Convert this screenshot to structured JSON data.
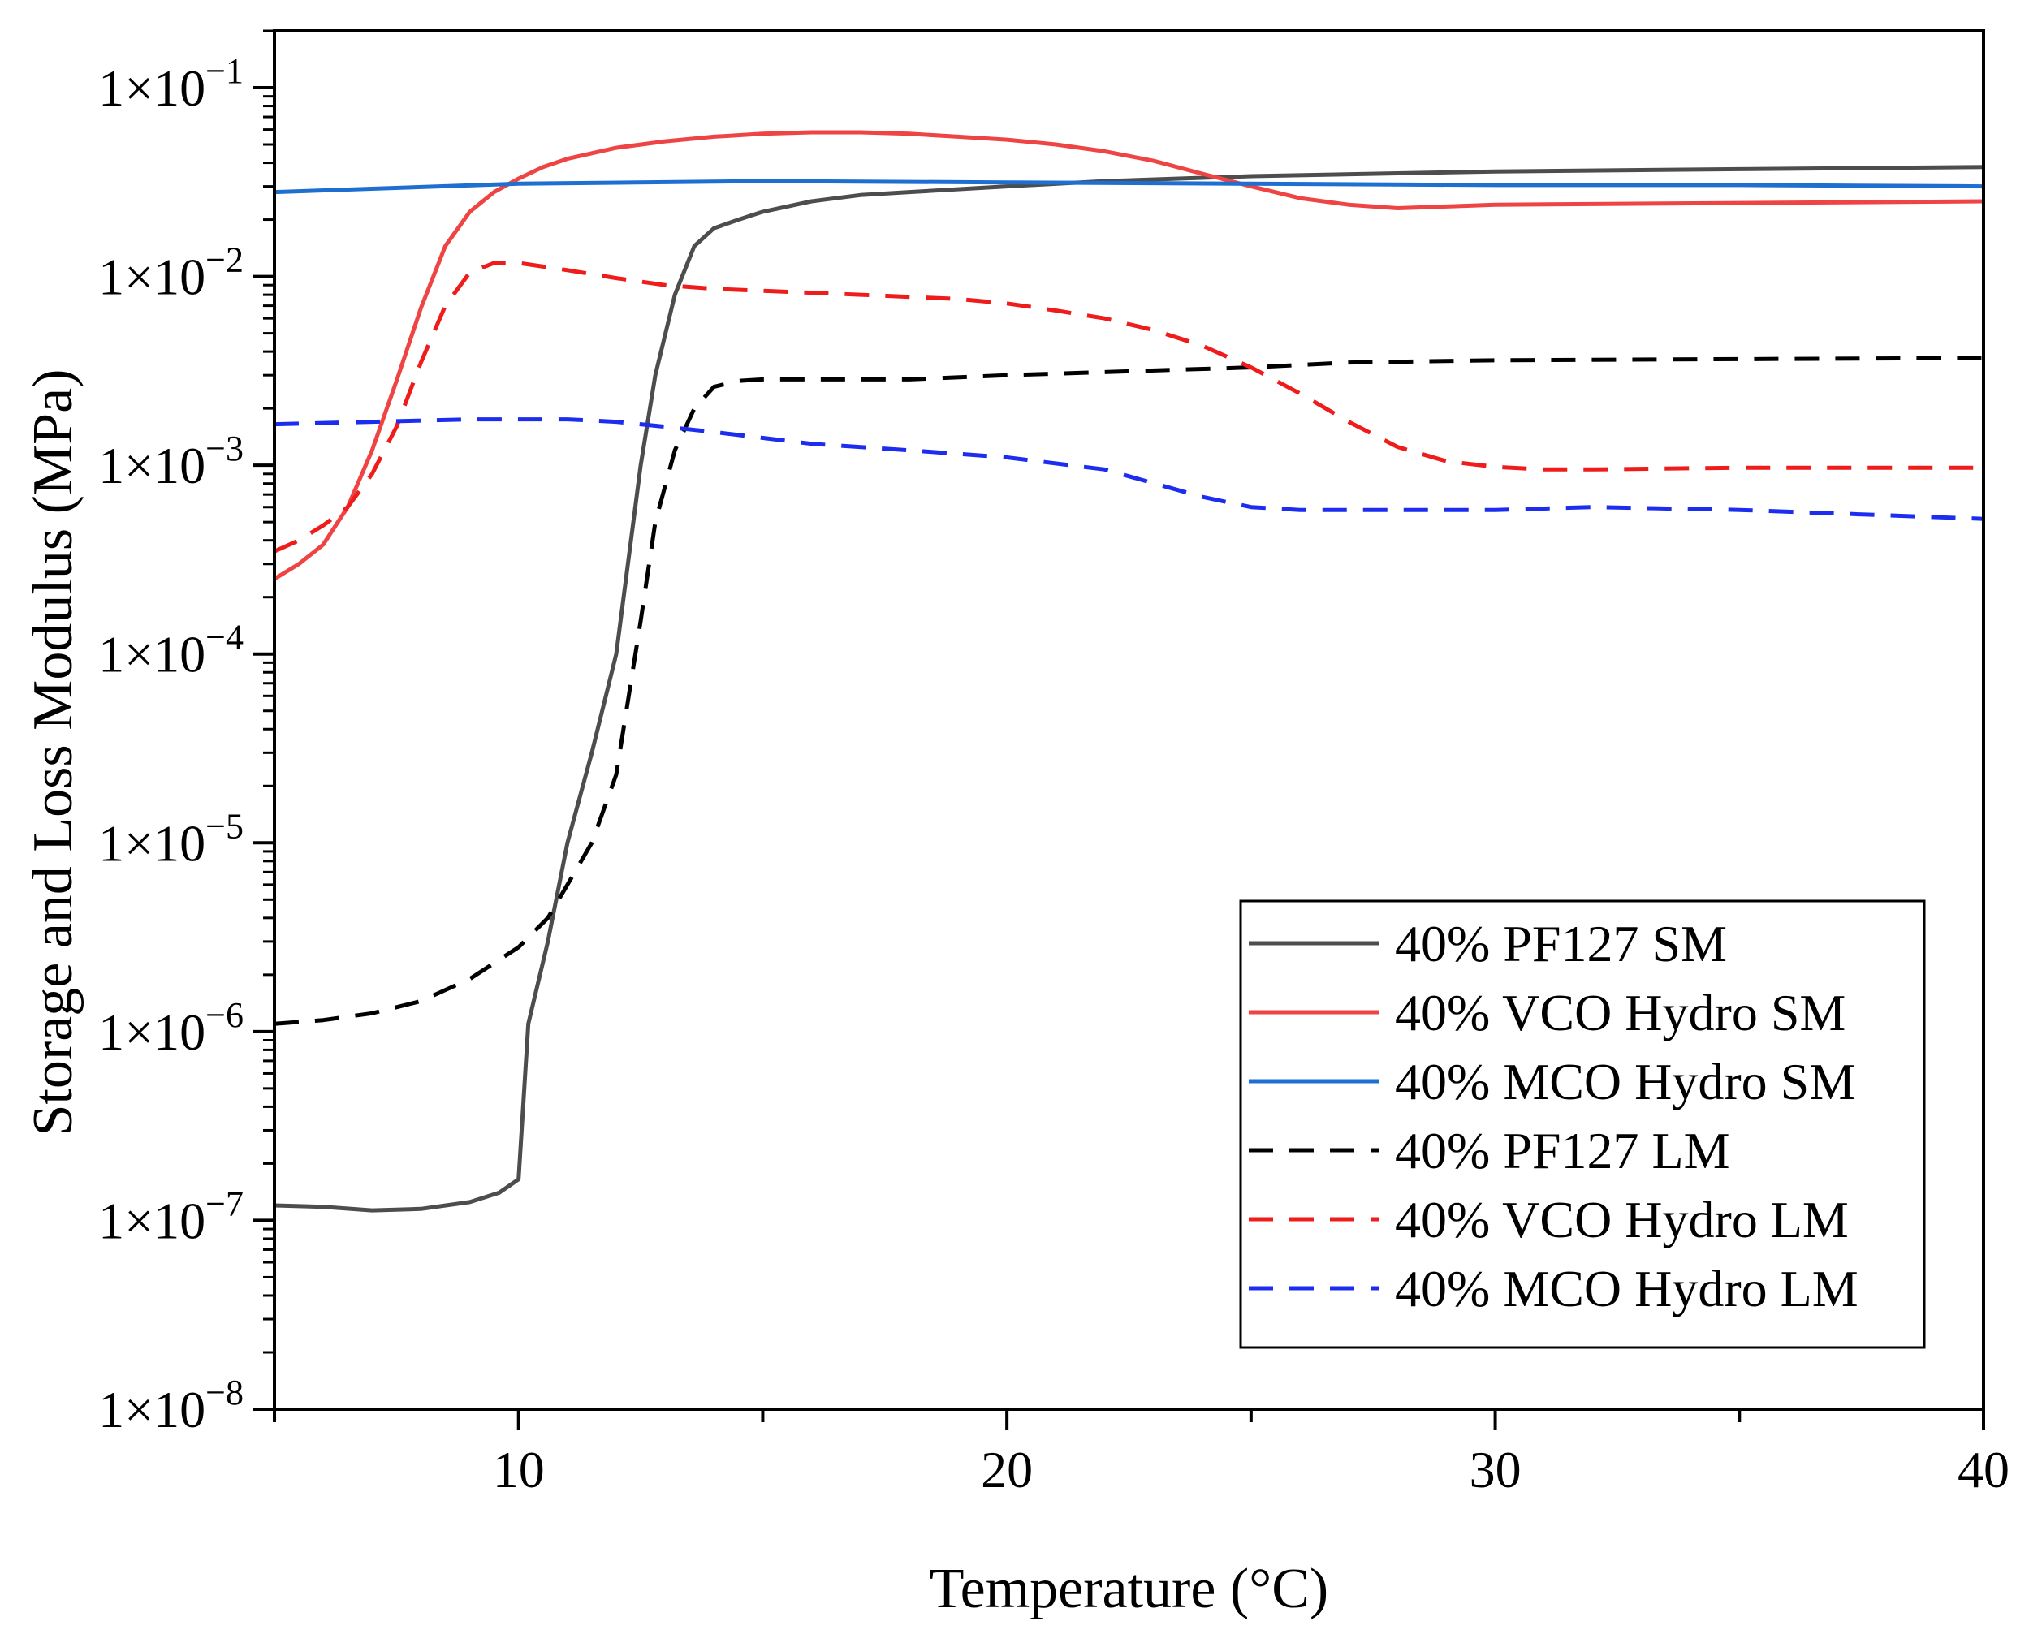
{
  "chart_data": {
    "type": "line",
    "title": "",
    "xlabel": "Temperature (°C)",
    "ylabel": "Storage and Loss Modulus (MPa)",
    "xlim": [
      5,
      40
    ],
    "ylim": [
      1e-08,
      0.2
    ],
    "yscale": "log",
    "grid": false,
    "legend_position": "bottom-right",
    "x_ticks": [
      {
        "value": 10,
        "label": "10"
      },
      {
        "value": 20,
        "label": "20"
      },
      {
        "value": 30,
        "label": "30"
      },
      {
        "value": 40,
        "label": "40"
      }
    ],
    "y_ticks": [
      {
        "value": 1e-08,
        "label": "1×10",
        "exp": "−8"
      },
      {
        "value": 1e-07,
        "label": "1×10",
        "exp": "−7"
      },
      {
        "value": 1e-06,
        "label": "1×10",
        "exp": "−6"
      },
      {
        "value": 1e-05,
        "label": "1×10",
        "exp": "−5"
      },
      {
        "value": 0.0001,
        "label": "1×10",
        "exp": "−4"
      },
      {
        "value": 0.001,
        "label": "1×10",
        "exp": "−3"
      },
      {
        "value": 0.01,
        "label": "1×10",
        "exp": "−2"
      },
      {
        "value": 0.1,
        "label": "1×10",
        "exp": "−1"
      }
    ],
    "series": [
      {
        "name": "40% PF127 SM",
        "color": "#4d4d4d",
        "dash": "solid",
        "x": [
          5,
          6,
          7,
          8,
          9,
          9.6,
          10,
          10.2,
          10.6,
          11,
          11.5,
          12,
          12.5,
          12.8,
          13.2,
          13.6,
          14,
          14.5,
          15,
          16,
          17,
          18,
          20,
          22,
          25,
          30,
          35,
          40
        ],
        "y": [
          1.2e-07,
          1.18e-07,
          1.13e-07,
          1.15e-07,
          1.25e-07,
          1.4e-07,
          1.65e-07,
          1.1e-06,
          3e-06,
          1e-05,
          3e-05,
          0.0001,
          0.001,
          0.003,
          0.008,
          0.0145,
          0.018,
          0.02,
          0.022,
          0.025,
          0.027,
          0.028,
          0.03,
          0.032,
          0.034,
          0.036,
          0.037,
          0.038
        ]
      },
      {
        "name": "40% VCO Hydro SM",
        "color": "#ef4444",
        "dash": "solid",
        "x": [
          5,
          5.5,
          6,
          6.5,
          7,
          7.5,
          8,
          8.5,
          9,
          9.5,
          10,
          10.5,
          11,
          12,
          13,
          14,
          15,
          16,
          17,
          18,
          19,
          20,
          21,
          22,
          23,
          24,
          25,
          26,
          27,
          28,
          30,
          35,
          40
        ],
        "y": [
          0.00025,
          0.0003,
          0.00038,
          0.0006,
          0.0012,
          0.0028,
          0.0068,
          0.0145,
          0.022,
          0.028,
          0.033,
          0.038,
          0.042,
          0.048,
          0.052,
          0.055,
          0.057,
          0.058,
          0.058,
          0.057,
          0.055,
          0.053,
          0.05,
          0.046,
          0.041,
          0.035,
          0.03,
          0.026,
          0.024,
          0.023,
          0.024,
          0.0245,
          0.025
        ]
      },
      {
        "name": "40% MCO Hydro SM",
        "color": "#1f6fd1",
        "dash": "solid",
        "x": [
          5,
          10,
          15,
          20,
          25,
          30,
          35,
          40
        ],
        "y": [
          0.028,
          0.031,
          0.032,
          0.0315,
          0.031,
          0.0305,
          0.0305,
          0.03
        ]
      },
      {
        "name": "40% PF127 LM",
        "color": "#000000",
        "dash": "dashed",
        "x": [
          5,
          6,
          7,
          8,
          9,
          10,
          10.6,
          11,
          11.5,
          12,
          12.5,
          12.8,
          13.2,
          13.6,
          14,
          14.5,
          15,
          18,
          20,
          25,
          27,
          30,
          35,
          40
        ],
        "y": [
          1.1e-06,
          1.15e-06,
          1.25e-06,
          1.45e-06,
          1.9e-06,
          2.8e-06,
          4e-06,
          6e-06,
          1e-05,
          2.3e-05,
          0.00015,
          0.0005,
          0.0012,
          0.002,
          0.0026,
          0.0028,
          0.00285,
          0.00285,
          0.003,
          0.0033,
          0.0035,
          0.0036,
          0.00365,
          0.0037
        ]
      },
      {
        "name": "40% VCO Hydro LM",
        "color": "#ef1c1c",
        "dash": "dashed",
        "x": [
          5,
          5.5,
          6,
          6.5,
          7,
          7.5,
          8,
          8.5,
          9,
          9.5,
          10,
          11,
          12,
          13,
          14,
          15,
          17,
          19,
          20,
          21,
          22,
          23,
          24,
          25,
          26,
          27,
          28,
          29,
          30,
          31,
          32,
          35,
          40
        ],
        "y": [
          0.00035,
          0.0004,
          0.00048,
          0.0006,
          0.0009,
          0.0016,
          0.0035,
          0.007,
          0.0105,
          0.0118,
          0.0118,
          0.0108,
          0.0098,
          0.009,
          0.0086,
          0.0084,
          0.008,
          0.0076,
          0.0072,
          0.0066,
          0.006,
          0.0052,
          0.0043,
          0.0033,
          0.0024,
          0.0017,
          0.00125,
          0.00105,
          0.00098,
          0.00095,
          0.00095,
          0.00097,
          0.00097
        ]
      },
      {
        "name": "40% MCO Hydro LM",
        "color": "#1d2df0",
        "dash": "dashed",
        "x": [
          5,
          7,
          9,
          11,
          12,
          13,
          14,
          16,
          18,
          20,
          22,
          24,
          25,
          26,
          28,
          30,
          32,
          35,
          40
        ],
        "y": [
          0.00165,
          0.0017,
          0.00175,
          0.00175,
          0.0017,
          0.0016,
          0.0015,
          0.0013,
          0.0012,
          0.0011,
          0.00095,
          0.00068,
          0.0006,
          0.00058,
          0.00058,
          0.00058,
          0.0006,
          0.00058,
          0.00052
        ]
      }
    ]
  }
}
